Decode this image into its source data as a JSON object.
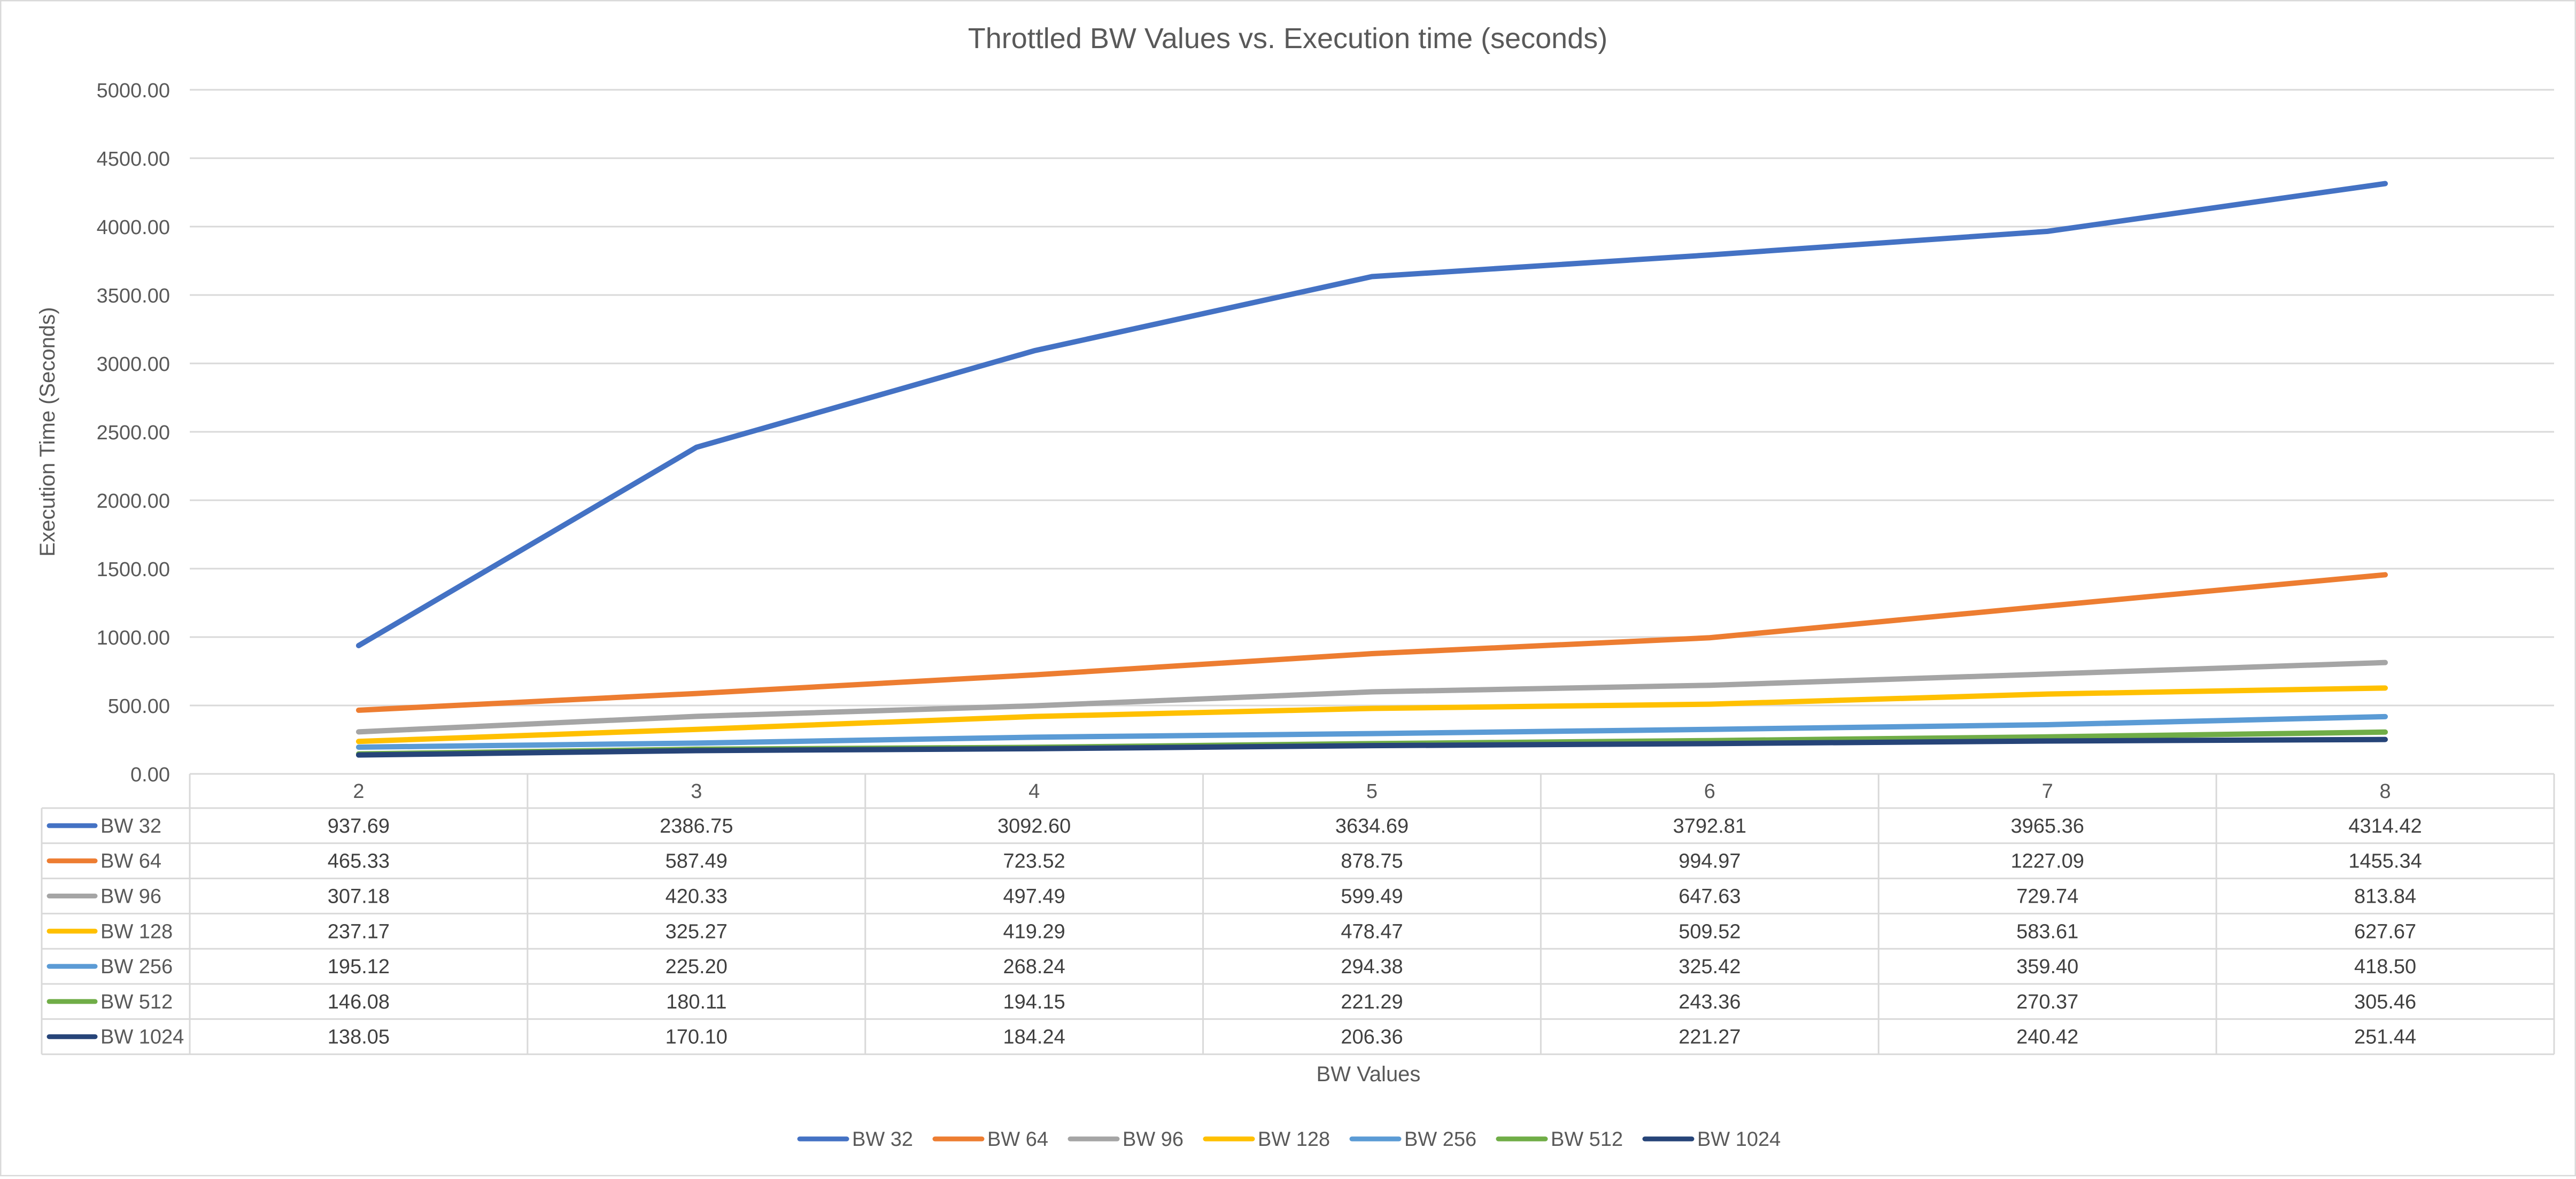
{
  "chart_data": {
    "type": "line",
    "title": "Throttled BW Values vs. Execution time (seconds)",
    "xlabel": "BW Values",
    "ylabel": "Execution Time (Seconds)",
    "categories": [
      "2",
      "3",
      "4",
      "5",
      "6",
      "7",
      "8"
    ],
    "ylim": [
      0,
      5000
    ],
    "yticks": [
      "0.00",
      "500.00",
      "1000.00",
      "1500.00",
      "2000.00",
      "2500.00",
      "3000.00",
      "3500.00",
      "4000.00",
      "4500.00",
      "5000.00"
    ],
    "grid": true,
    "legend_position": "bottom",
    "data_table": true,
    "series": [
      {
        "name": "BW 32",
        "color": "#4472C4",
        "values": [
          937.69,
          2386.75,
          3092.6,
          3634.69,
          3792.81,
          3965.36,
          4314.42
        ],
        "labels": [
          "937.69",
          "2386.75",
          "3092.60",
          "3634.69",
          "3792.81",
          "3965.36",
          "4314.42"
        ]
      },
      {
        "name": "BW 64",
        "color": "#ED7D31",
        "values": [
          465.33,
          587.49,
          723.52,
          878.75,
          994.97,
          1227.09,
          1455.34
        ],
        "labels": [
          "465.33",
          "587.49",
          "723.52",
          "878.75",
          "994.97",
          "1227.09",
          "1455.34"
        ]
      },
      {
        "name": "BW 96",
        "color": "#A5A5A5",
        "values": [
          307.18,
          420.33,
          497.49,
          599.49,
          647.63,
          729.74,
          813.84
        ],
        "labels": [
          "307.18",
          "420.33",
          "497.49",
          "599.49",
          "647.63",
          "729.74",
          "813.84"
        ]
      },
      {
        "name": "BW 128",
        "color": "#FFC000",
        "values": [
          237.17,
          325.27,
          419.29,
          478.47,
          509.52,
          583.61,
          627.67
        ],
        "labels": [
          "237.17",
          "325.27",
          "419.29",
          "478.47",
          "509.52",
          "583.61",
          "627.67"
        ]
      },
      {
        "name": "BW 256",
        "color": "#5B9BD5",
        "values": [
          195.12,
          225.2,
          268.24,
          294.38,
          325.42,
          359.4,
          418.5
        ],
        "labels": [
          "195.12",
          "225.20",
          "268.24",
          "294.38",
          "325.42",
          "359.40",
          "418.50"
        ]
      },
      {
        "name": "BW 512",
        "color": "#70AD47",
        "values": [
          146.08,
          180.11,
          194.15,
          221.29,
          243.36,
          270.37,
          305.46
        ],
        "labels": [
          "146.08",
          "180.11",
          "194.15",
          "221.29",
          "243.36",
          "270.37",
          "305.46"
        ]
      },
      {
        "name": "BW 1024",
        "color": "#264478",
        "values": [
          138.05,
          170.1,
          184.24,
          206.36,
          221.27,
          240.42,
          251.44
        ],
        "labels": [
          "138.05",
          "170.10",
          "184.24",
          "206.36",
          "221.27",
          "240.42",
          "251.44"
        ]
      }
    ]
  }
}
